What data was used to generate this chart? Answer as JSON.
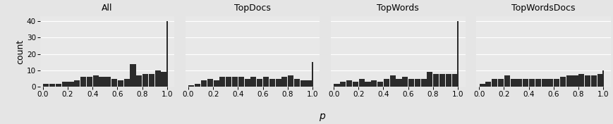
{
  "panels": [
    "All",
    "TopDocs",
    "TopWords",
    "TopWordsDocs"
  ],
  "xlabel": "p",
  "ylabel": "count",
  "ylim": [
    0,
    43
  ],
  "yticks": [
    0,
    10,
    20,
    30,
    40
  ],
  "xticks": [
    0.0,
    0.2,
    0.4,
    0.6,
    0.8,
    1.0
  ],
  "bin_edges": [
    0.0,
    0.05,
    0.1,
    0.15,
    0.2,
    0.25,
    0.3,
    0.35,
    0.4,
    0.45,
    0.5,
    0.55,
    0.6,
    0.65,
    0.7,
    0.75,
    0.8,
    0.85,
    0.9,
    0.95,
    1.0
  ],
  "spike_value": 1.0,
  "counts": {
    "All": [
      2,
      2,
      2,
      3,
      3,
      4,
      6,
      6,
      7,
      6,
      6,
      5,
      4,
      5,
      14,
      7,
      8,
      8,
      10,
      9
    ],
    "TopDocs": [
      1,
      2,
      4,
      5,
      4,
      6,
      6,
      6,
      6,
      5,
      6,
      5,
      6,
      5,
      5,
      6,
      7,
      5,
      4,
      4
    ],
    "TopWords": [
      2,
      3,
      4,
      3,
      5,
      3,
      4,
      3,
      5,
      7,
      5,
      6,
      5,
      5,
      5,
      9,
      8,
      8,
      8,
      8
    ],
    "TopWordsDocs": [
      2,
      3,
      5,
      5,
      7,
      5,
      5,
      5,
      5,
      5,
      5,
      5,
      5,
      6,
      7,
      7,
      8,
      7,
      7,
      8
    ]
  },
  "spike_counts": {
    "All": 40,
    "TopDocs": 15,
    "TopWords": 40,
    "TopWordsDocs": 10
  },
  "bar_color": "#2b2b2b",
  "background_panel": "#e8e8e8",
  "background_strip": "#c8c8c8",
  "grid_color": "#ffffff",
  "title_fontsize": 9,
  "axis_fontsize": 7.5,
  "label_fontsize": 9
}
